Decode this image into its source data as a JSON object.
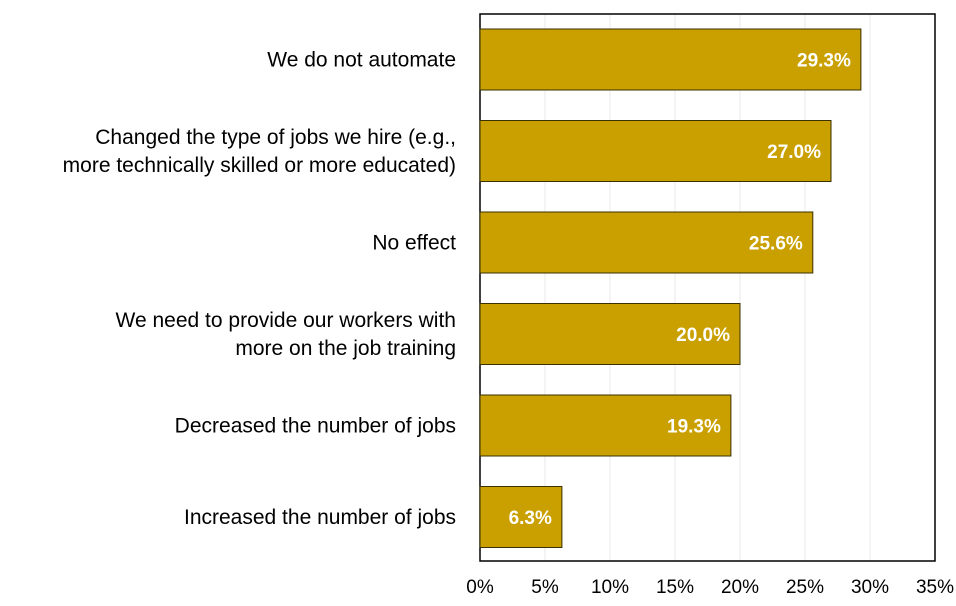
{
  "chart_data": {
    "type": "bar",
    "orientation": "horizontal",
    "categories": [
      [
        "We do not automate"
      ],
      [
        "Changed the type of jobs we hire (e.g.,",
        "more technically skilled or more educated)"
      ],
      [
        "No effect"
      ],
      [
        "We need to provide our workers with",
        "more on the job training"
      ],
      [
        "Decreased the number of jobs"
      ],
      [
        "Increased the number of jobs"
      ]
    ],
    "values": [
      29.3,
      27.0,
      25.6,
      20.0,
      19.3,
      6.3
    ],
    "data_labels": [
      "29.3%",
      "27.0%",
      "25.6%",
      "20.0%",
      "19.3%",
      "6.3%"
    ],
    "xlim": [
      0,
      35
    ],
    "xticks": [
      0,
      5,
      10,
      15,
      20,
      25,
      30,
      35
    ],
    "xtick_labels": [
      "0%",
      "5%",
      "10%",
      "15%",
      "20%",
      "25%",
      "30%",
      "35%"
    ],
    "grid": "vertical",
    "legend": "none",
    "title": "",
    "xlabel": "",
    "ylabel": "",
    "colors": {
      "bar_fill": "#C9A000",
      "bar_stroke": "#3a3000",
      "grid": "#e8e8e8",
      "frame": "#000000",
      "data_label": "#ffffff"
    }
  }
}
